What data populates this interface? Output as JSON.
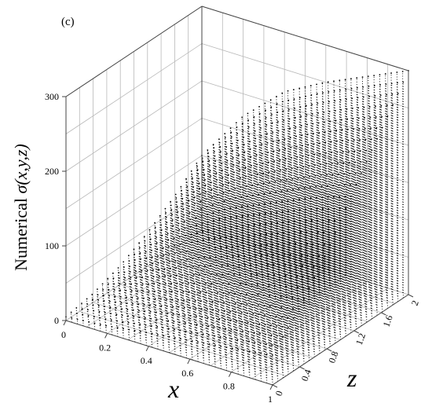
{
  "panel_label": "(c)",
  "chart_data": {
    "type": "scatter",
    "style": "3d-surface-stem-dots",
    "title": "",
    "xlabel": "x",
    "zlabel": "z",
    "ylabel_parts": {
      "prefix": "Numerical ",
      "func": "σ(x,y,z)"
    },
    "x_ticks": [
      "0",
      "0.2",
      "0.4",
      "0.6",
      "0.8",
      "1"
    ],
    "z_ticks": [
      "0",
      "0.4",
      "0.8",
      "1.2",
      "1.6",
      "2"
    ],
    "y_ticks": [
      "0",
      "100",
      "200",
      "300"
    ],
    "xlim": [
      0,
      1
    ],
    "zlim": [
      0,
      2
    ],
    "ylim": [
      0,
      300
    ],
    "grid": true,
    "color": "#000000",
    "sample_surface": {
      "x": [
        0,
        0.2,
        0.4,
        0.6,
        0.8,
        1.0
      ],
      "z": [
        0,
        0.4,
        0.8,
        1.2,
        1.6,
        2.0
      ],
      "values": [
        [
          5,
          12,
          25,
          45,
          70,
          100
        ],
        [
          10,
          25,
          50,
          85,
          125,
          170
        ],
        [
          18,
          40,
          75,
          120,
          170,
          220
        ],
        [
          25,
          55,
          95,
          145,
          200,
          250
        ],
        [
          32,
          68,
          115,
          170,
          225,
          275
        ],
        [
          40,
          80,
          130,
          190,
          245,
          300
        ]
      ]
    }
  }
}
